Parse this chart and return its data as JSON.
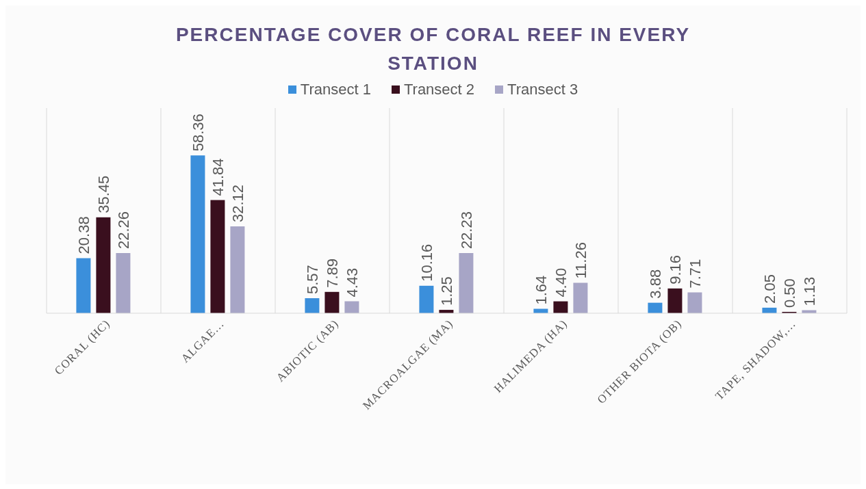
{
  "chart_data": {
    "type": "bar",
    "title": "PERCENTAGE COVER OF CORAL REEF IN EVERY STATION",
    "categories": [
      "CORAL (HC)",
      "ALGAE…",
      "ABIOTIC (AB)",
      "MACROALGAE (MA)",
      "HALIMEDA (HA)",
      "OTHER BIOTA (OB)",
      "TAPE, SHADOW,…"
    ],
    "series": [
      {
        "name": "Transect 1",
        "color": "#3b8fdb",
        "values": [
          20.38,
          58.36,
          5.57,
          10.16,
          1.64,
          3.88,
          2.05
        ],
        "value_labels": [
          "20.38",
          "58.36",
          "5.57",
          "10.16",
          "1.64",
          "3.88",
          "2.05"
        ]
      },
      {
        "name": "Transect 2",
        "color": "#3a0f1e",
        "values": [
          35.45,
          41.84,
          7.89,
          1.25,
          4.4,
          9.16,
          0.5
        ],
        "value_labels": [
          "35.45",
          "41.84",
          "7.89",
          "1.25",
          "4.40",
          "9.16",
          "0.50"
        ]
      },
      {
        "name": "Transect 3",
        "color": "#a7a5c6",
        "values": [
          22.26,
          32.12,
          4.43,
          22.23,
          11.26,
          7.71,
          1.13
        ],
        "value_labels": [
          "22.26",
          "32.12",
          "4.43",
          "22.23",
          "11.26",
          "7.71",
          "1.13"
        ]
      }
    ],
    "legend": "top",
    "grid": "x",
    "tick_labels": "x"
  }
}
